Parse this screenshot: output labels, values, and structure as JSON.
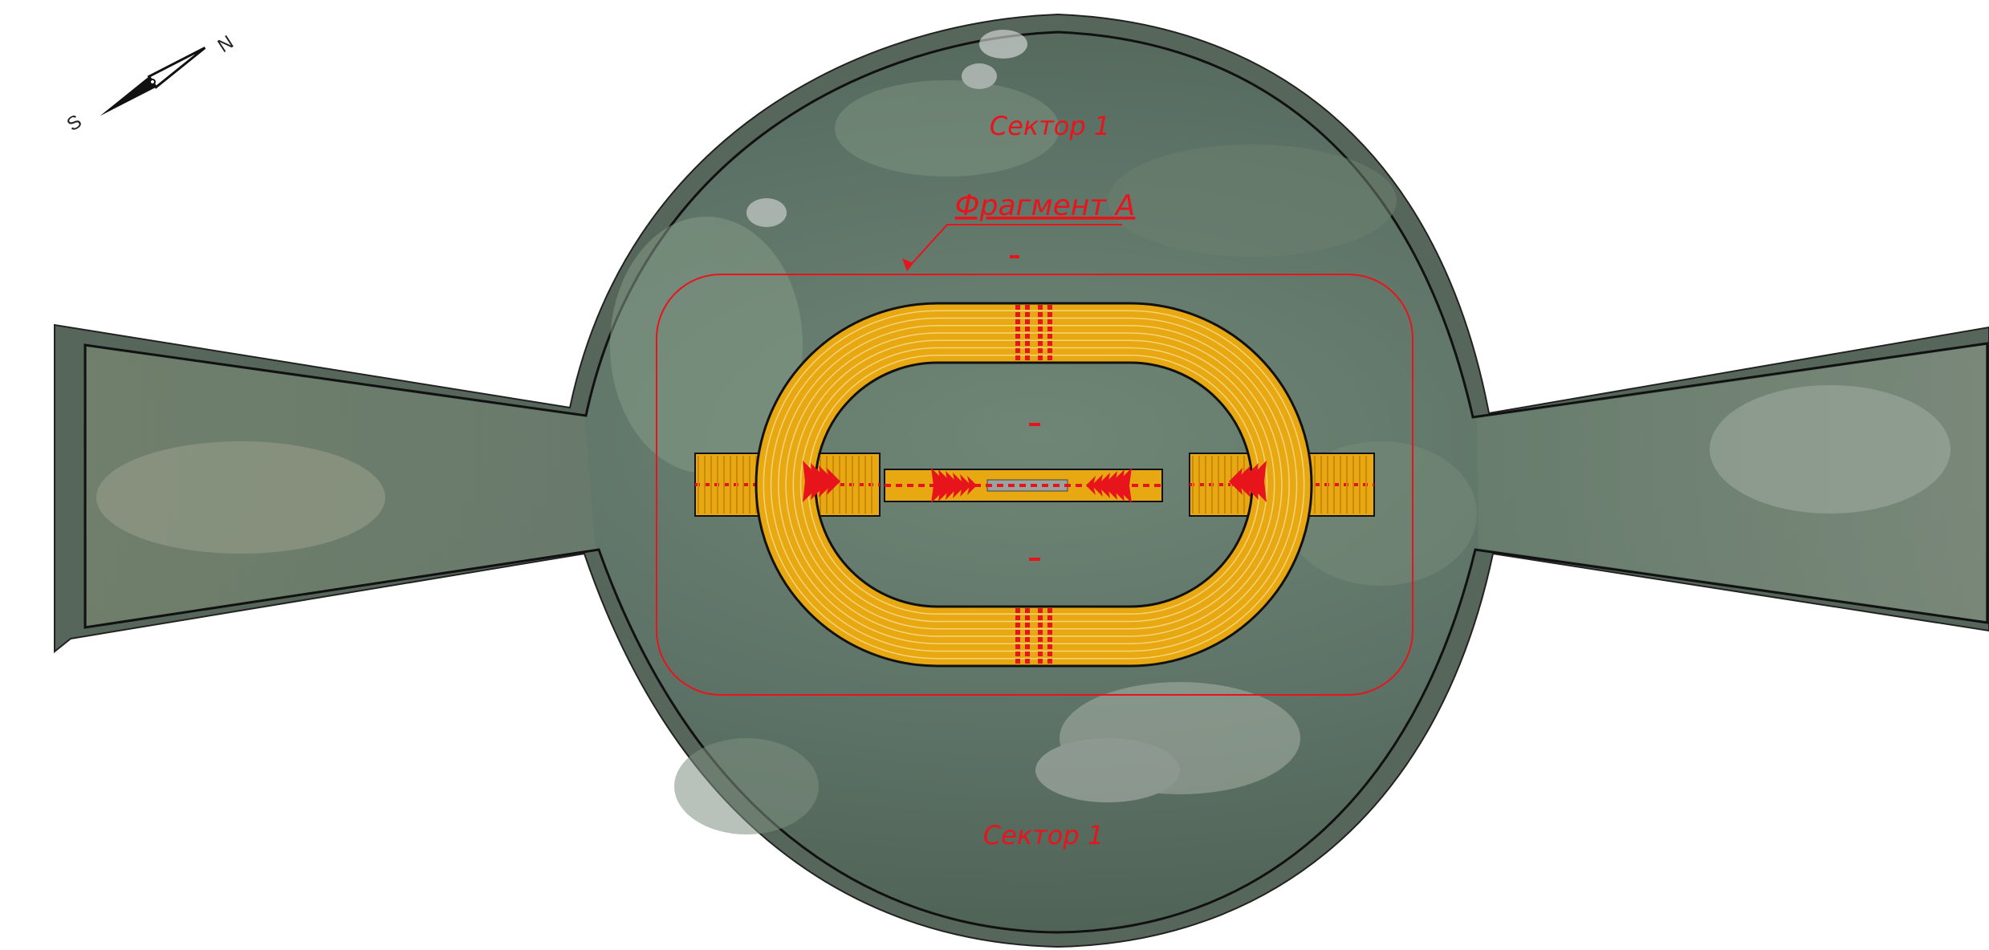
{
  "compass": {
    "north": "N",
    "south": "S"
  },
  "labels": {
    "sector_top": "Сектор 1",
    "sector_bottom": "Сектор 1",
    "fragment": "Фрагмент А"
  },
  "colors": {
    "terrain": "#5d7266",
    "terrain_light": "#7d8f7f",
    "border_fill": "#59675c",
    "border_line": "#111111",
    "track_fill": "#e8a812",
    "track_line": "#c88a08",
    "accent_red": "#e8141b"
  },
  "icons": [
    "compass-icon"
  ]
}
